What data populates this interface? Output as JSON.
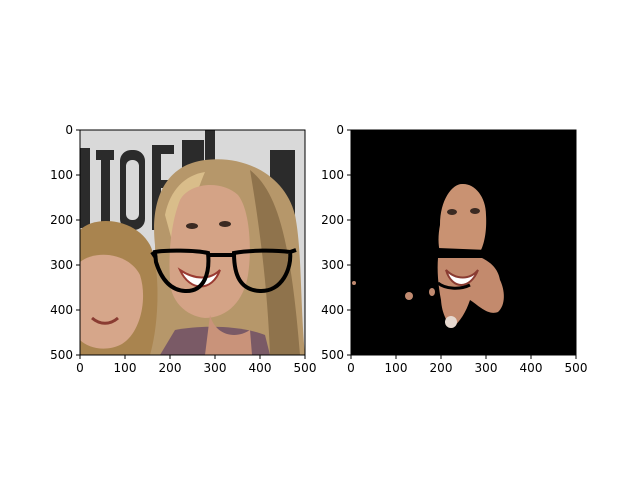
{
  "figure": {
    "panels": [
      {
        "name": "original-with-glasses",
        "xlim": [
          0,
          500
        ],
        "ylim": [
          500,
          0
        ],
        "xticks": [
          0,
          100,
          200,
          300,
          400,
          500
        ],
        "yticks": [
          0,
          100,
          200,
          300,
          400,
          500
        ],
        "content": "photo of two women with black eyeglasses overlay",
        "colors": {
          "background_wall": "#dcdcdc",
          "hair": "#b99a6c",
          "skin": "#d2a184",
          "glasses": "#000000"
        }
      },
      {
        "name": "face-mask",
        "xlim": [
          0,
          500
        ],
        "ylim": [
          500,
          0
        ],
        "xticks": [
          0,
          100,
          200,
          300,
          400,
          500
        ],
        "yticks": [
          0,
          100,
          200,
          300,
          400,
          500
        ],
        "content": "segmented face region on black background",
        "colors": {
          "background": "#000000",
          "skin": "#c99272"
        }
      }
    ]
  }
}
